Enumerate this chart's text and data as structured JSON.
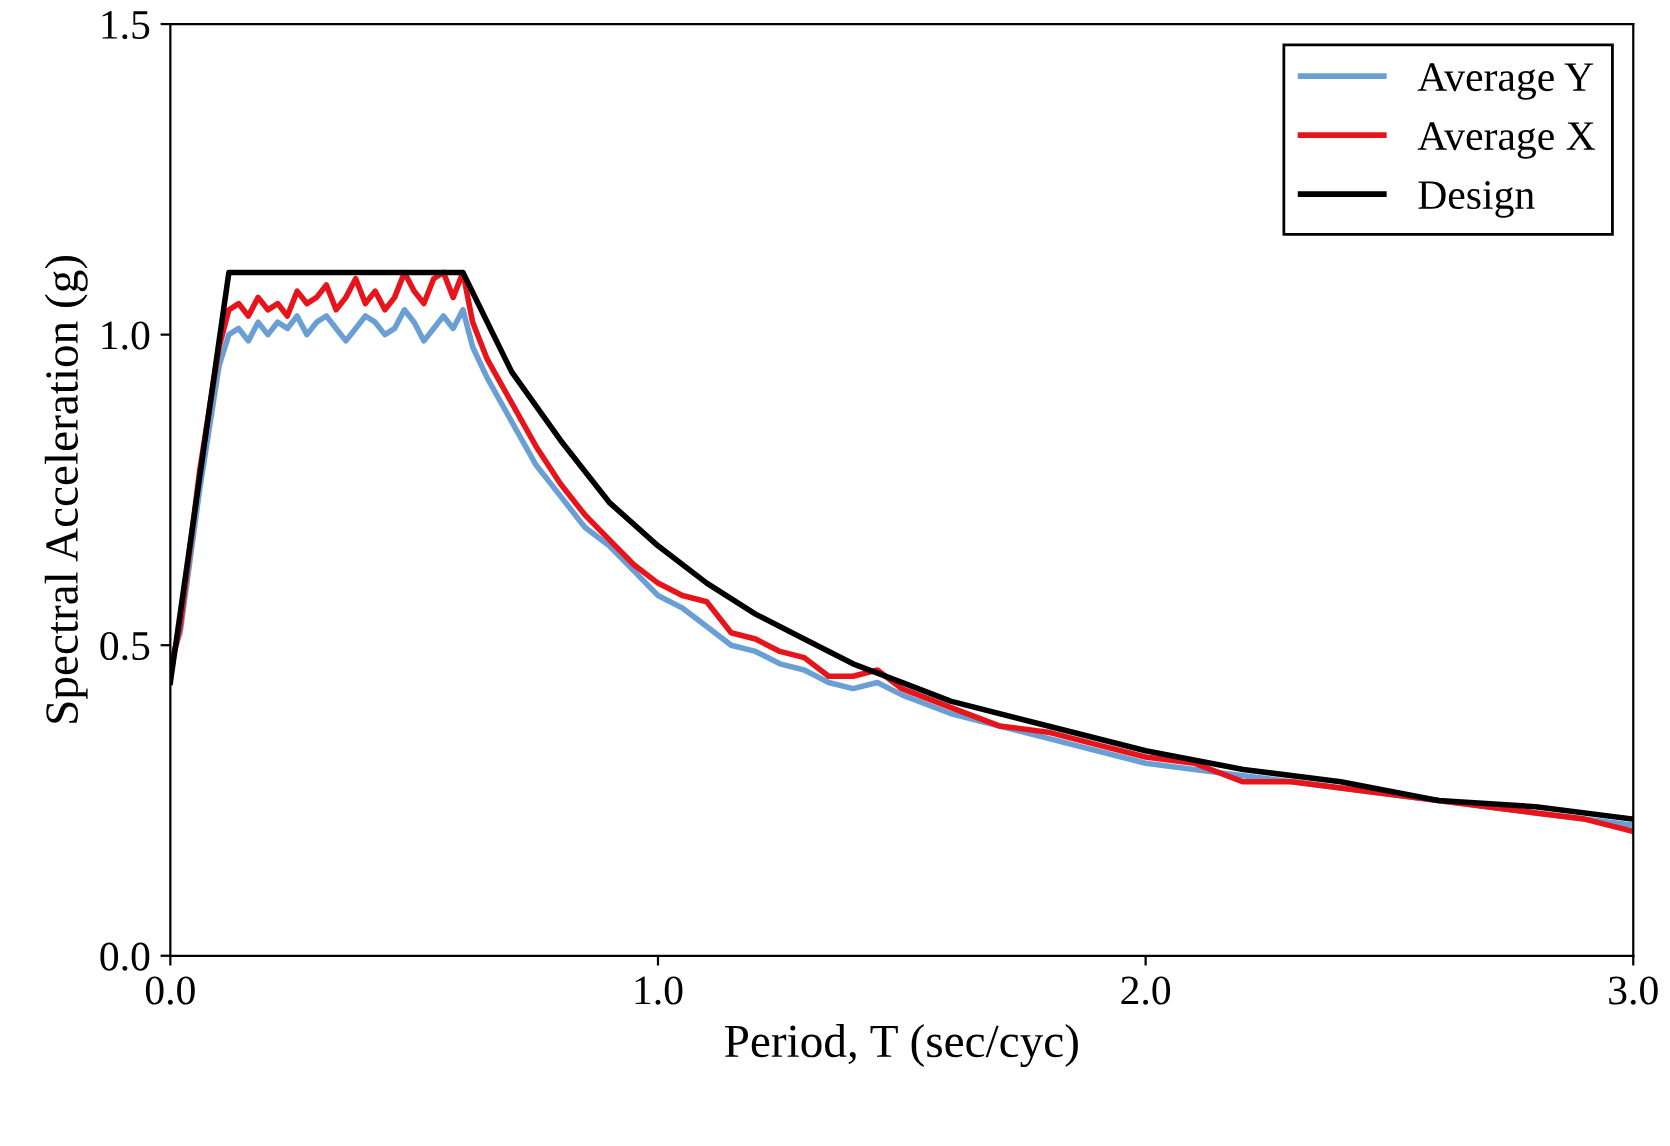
{
  "chart_data": {
    "type": "line",
    "xlabel": "Period, T (sec/cyc)",
    "ylabel": "Spectral Acceleration (g)",
    "xlim": [
      0,
      3
    ],
    "ylim": [
      0,
      1.5
    ],
    "xticks": [
      {
        "value": 0,
        "label": "0.0"
      },
      {
        "value": 1,
        "label": "1.0"
      },
      {
        "value": 2,
        "label": "2.0"
      },
      {
        "value": 3,
        "label": "3.0"
      }
    ],
    "yticks": [
      {
        "value": 0,
        "label": "0.0"
      },
      {
        "value": 0.5,
        "label": "0.5"
      },
      {
        "value": 1,
        "label": "1.0"
      },
      {
        "value": 1.5,
        "label": "1.5"
      }
    ],
    "grid": false,
    "legend": "top right",
    "marker": "none",
    "line_style": "solid",
    "series": [
      {
        "name": "Average Y",
        "color": "#6a9fd4",
        "x": [
          0,
          0.02,
          0.06,
          0.1,
          0.12,
          0.14,
          0.16,
          0.18,
          0.2,
          0.22,
          0.24,
          0.26,
          0.28,
          0.3,
          0.32,
          0.34,
          0.36,
          0.38,
          0.4,
          0.42,
          0.44,
          0.46,
          0.48,
          0.5,
          0.52,
          0.54,
          0.56,
          0.58,
          0.6,
          0.62,
          0.65,
          0.7,
          0.75,
          0.8,
          0.85,
          0.9,
          0.95,
          1.0,
          1.05,
          1.1,
          1.15,
          1.2,
          1.25,
          1.3,
          1.35,
          1.4,
          1.45,
          1.5,
          1.6,
          1.7,
          1.8,
          1.9,
          2.0,
          2.1,
          2.2,
          2.3,
          2.4,
          2.5,
          2.6,
          2.7,
          2.8,
          2.9,
          3.0
        ],
        "values": [
          0.47,
          0.52,
          0.75,
          0.95,
          1.0,
          1.01,
          0.99,
          1.02,
          1.0,
          1.02,
          1.01,
          1.03,
          1.0,
          1.02,
          1.03,
          1.01,
          0.99,
          1.01,
          1.03,
          1.02,
          1.0,
          1.01,
          1.04,
          1.02,
          0.99,
          1.01,
          1.03,
          1.01,
          1.04,
          0.98,
          0.93,
          0.86,
          0.79,
          0.74,
          0.69,
          0.66,
          0.62,
          0.58,
          0.56,
          0.53,
          0.5,
          0.49,
          0.47,
          0.46,
          0.44,
          0.43,
          0.44,
          0.42,
          0.39,
          0.37,
          0.35,
          0.33,
          0.31,
          0.3,
          0.29,
          0.28,
          0.27,
          0.26,
          0.25,
          0.24,
          0.23,
          0.22,
          0.21
        ]
      },
      {
        "name": "Average X",
        "color": "#e8141c",
        "x": [
          0,
          0.02,
          0.06,
          0.1,
          0.12,
          0.14,
          0.16,
          0.18,
          0.2,
          0.22,
          0.24,
          0.26,
          0.28,
          0.3,
          0.32,
          0.34,
          0.36,
          0.38,
          0.4,
          0.42,
          0.44,
          0.46,
          0.48,
          0.5,
          0.52,
          0.54,
          0.56,
          0.58,
          0.6,
          0.62,
          0.65,
          0.7,
          0.75,
          0.8,
          0.85,
          0.9,
          0.95,
          1.0,
          1.05,
          1.1,
          1.15,
          1.2,
          1.25,
          1.3,
          1.35,
          1.4,
          1.45,
          1.5,
          1.6,
          1.7,
          1.8,
          1.9,
          2.0,
          2.1,
          2.2,
          2.3,
          2.4,
          2.5,
          2.6,
          2.7,
          2.8,
          2.9,
          3.0
        ],
        "values": [
          0.46,
          0.53,
          0.78,
          0.98,
          1.04,
          1.05,
          1.03,
          1.06,
          1.04,
          1.05,
          1.03,
          1.07,
          1.05,
          1.06,
          1.08,
          1.04,
          1.06,
          1.09,
          1.05,
          1.07,
          1.04,
          1.06,
          1.1,
          1.07,
          1.05,
          1.09,
          1.1,
          1.06,
          1.1,
          1.02,
          0.96,
          0.89,
          0.82,
          0.76,
          0.71,
          0.67,
          0.63,
          0.6,
          0.58,
          0.57,
          0.52,
          0.51,
          0.49,
          0.48,
          0.45,
          0.45,
          0.46,
          0.43,
          0.4,
          0.37,
          0.36,
          0.34,
          0.32,
          0.31,
          0.28,
          0.28,
          0.27,
          0.26,
          0.25,
          0.24,
          0.23,
          0.22,
          0.2
        ]
      },
      {
        "name": "Design",
        "color": "#000000",
        "x": [
          0,
          0.12,
          0.6,
          0.65,
          0.7,
          0.8,
          0.9,
          1.0,
          1.1,
          1.2,
          1.3,
          1.4,
          1.5,
          1.6,
          1.8,
          2.0,
          2.2,
          2.4,
          2.6,
          2.8,
          3.0
        ],
        "values": [
          0.44,
          1.1,
          1.1,
          1.02,
          0.94,
          0.83,
          0.73,
          0.66,
          0.6,
          0.55,
          0.51,
          0.47,
          0.44,
          0.41,
          0.37,
          0.33,
          0.3,
          0.28,
          0.25,
          0.24,
          0.22
        ]
      }
    ]
  }
}
